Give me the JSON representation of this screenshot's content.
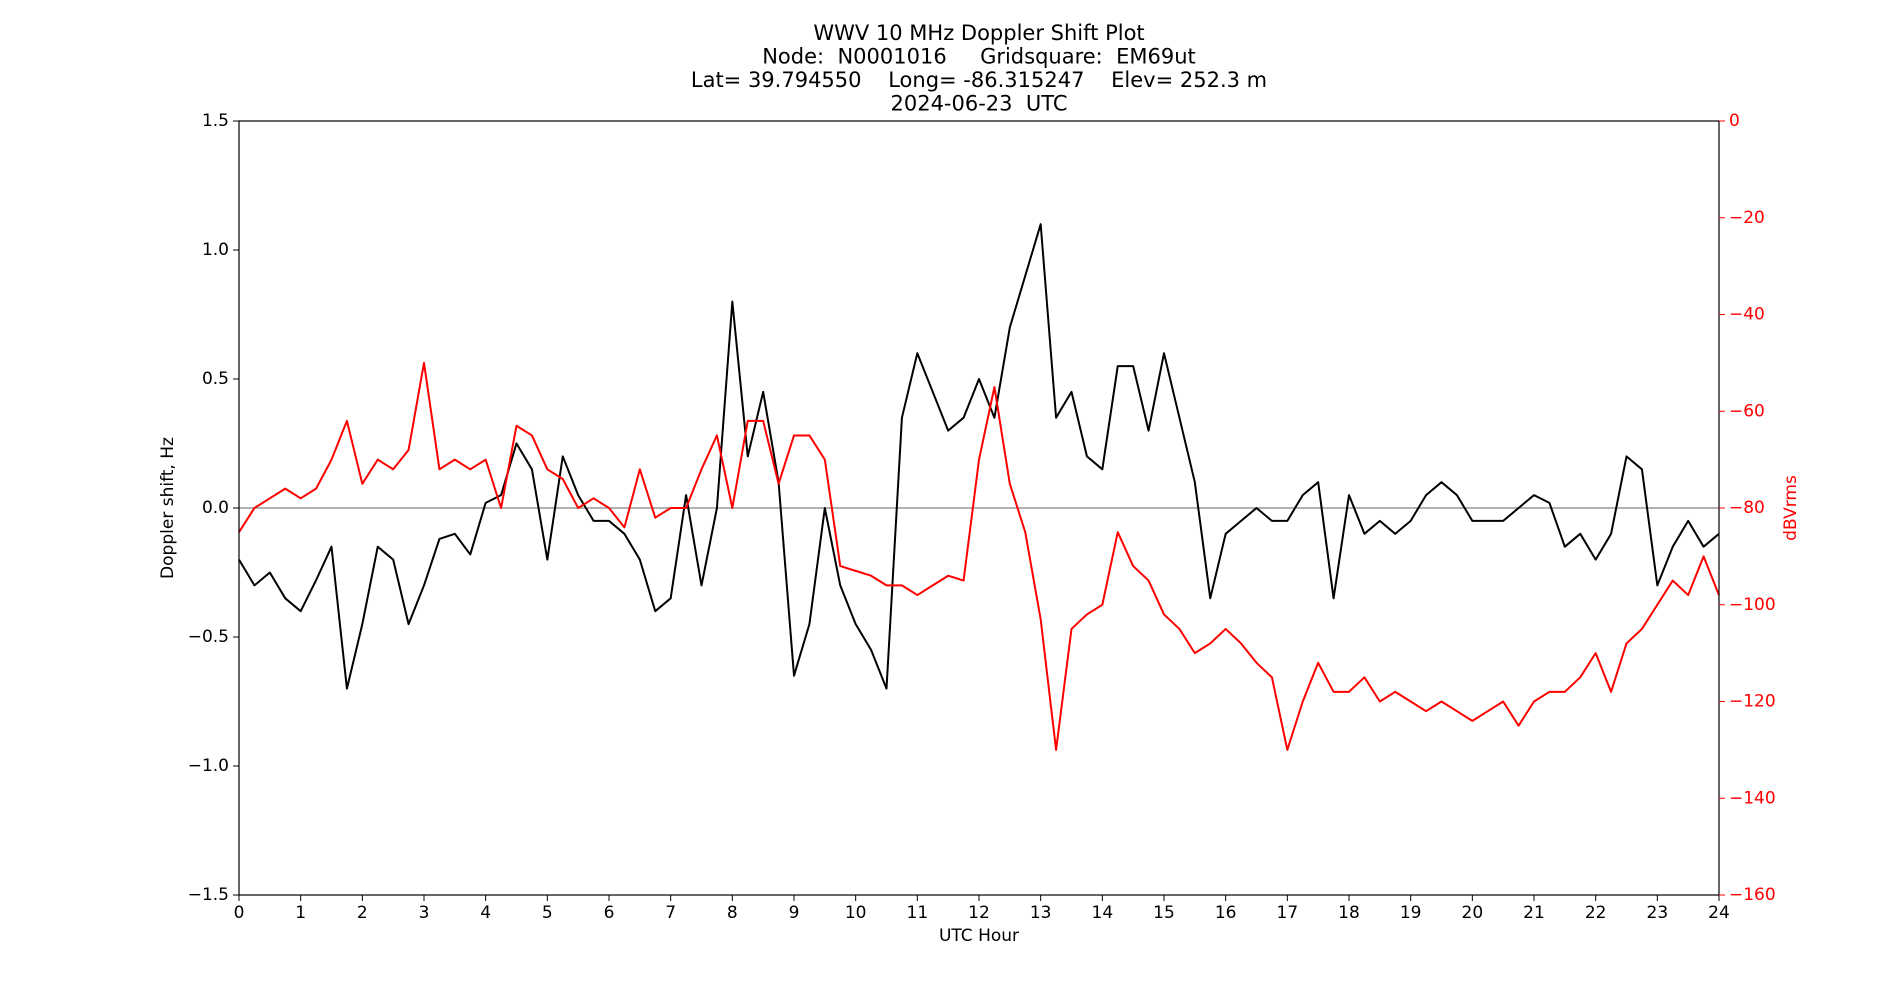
{
  "chart_data": {
    "type": "line",
    "title": [
      "WWV 10 MHz Doppler Shift Plot",
      "Node:  N0001016     Gridsquare:  EM69ut",
      "Lat= 39.794550    Long= -86.315247    Elev= 252.3 m",
      "2024-06-23  UTC"
    ],
    "xlabel": "UTC Hour",
    "ylabel": "Doppler shift, Hz",
    "y2label": "dBVrms",
    "x": [
      0,
      0.25,
      0.5,
      0.75,
      1,
      1.25,
      1.5,
      1.75,
      2,
      2.25,
      2.5,
      2.75,
      3,
      3.25,
      3.5,
      3.75,
      4,
      4.25,
      4.5,
      4.75,
      5,
      5.25,
      5.5,
      5.75,
      6,
      6.25,
      6.5,
      6.75,
      7,
      7.25,
      7.5,
      7.75,
      8,
      8.25,
      8.5,
      8.75,
      9,
      9.25,
      9.5,
      9.75,
      10,
      10.25,
      10.5,
      10.75,
      11,
      11.25,
      11.5,
      11.75,
      12,
      12.25,
      12.5,
      12.75,
      13,
      13.25,
      13.5,
      13.75,
      14,
      14.25,
      14.5,
      14.75,
      15,
      15.25,
      15.5,
      15.75,
      16,
      16.25,
      16.5,
      16.75,
      17,
      17.25,
      17.5,
      17.75,
      18,
      18.25,
      18.5,
      18.75,
      19,
      19.25,
      19.5,
      19.75,
      20,
      20.25,
      20.5,
      20.75,
      21,
      21.25,
      21.5,
      21.75,
      22,
      22.25,
      22.5,
      22.75,
      23,
      23.25,
      23.5,
      23.75,
      24
    ],
    "series": [
      {
        "color": "#000000",
        "values": [
          -0.2,
          -0.3,
          -0.25,
          -0.35,
          -0.4,
          -0.28,
          -0.15,
          -0.7,
          -0.45,
          -0.15,
          -0.2,
          -0.45,
          -0.3,
          -0.12,
          -0.1,
          -0.18,
          0.02,
          0.05,
          0.25,
          0.15,
          -0.2,
          0.2,
          0.05,
          -0.05,
          -0.05,
          -0.1,
          -0.2,
          -0.4,
          -0.35,
          0.05,
          -0.3,
          0,
          0.8,
          0.2,
          0.45,
          0.1,
          -0.65,
          -0.45,
          0,
          -0.3,
          -0.45,
          -0.55,
          -0.7,
          0.35,
          0.6,
          0.45,
          0.3,
          0.35,
          0.5,
          0.35,
          0.7,
          0.9,
          1.1,
          0.35,
          0.45,
          0.2,
          0.15,
          0.55,
          0.55,
          0.3,
          0.6,
          0.35,
          0.1,
          -0.35,
          -0.1,
          -0.05,
          0,
          -0.05,
          -0.05,
          0.05,
          0.1,
          -0.35,
          0.05,
          -0.1,
          -0.05,
          -0.1,
          -0.05,
          0.05,
          0.1,
          0.05,
          -0.05,
          -0.05,
          -0.05,
          0,
          0.05,
          0.02,
          -0.15,
          -0.1,
          -0.2,
          -0.1,
          0.2,
          0.15,
          -0.3,
          -0.15,
          -0.05,
          -0.15,
          -0.1
        ]
      },
      {
        "color": "#ff0000",
        "axis": "y2",
        "values": [
          -85,
          -80,
          -78,
          -76,
          -78,
          -76,
          -70,
          -62,
          -75,
          -70,
          -72,
          -68,
          -50,
          -72,
          -70,
          -72,
          -70,
          -80,
          -63,
          -65,
          -72,
          -74,
          -80,
          -78,
          -80,
          -84,
          -72,
          -82,
          -80,
          -80,
          -72,
          -65,
          -80,
          -62,
          -62,
          -75,
          -65,
          -65,
          -70,
          -92,
          -93,
          -94,
          -96,
          -96,
          -98,
          -96,
          -94,
          -95,
          -70,
          -55,
          -75,
          -85,
          -103,
          -130,
          -105,
          -102,
          -100,
          -85,
          -92,
          -95,
          -102,
          -105,
          -110,
          -108,
          -105,
          -108,
          -112,
          -115,
          -130,
          -120,
          -112,
          -118,
          -118,
          -115,
          -120,
          -118,
          -120,
          -122,
          -120,
          -122,
          -124,
          -122,
          -120,
          -125,
          -120,
          -118,
          -118,
          -115,
          -110,
          -118,
          -108,
          -105,
          -100,
          -95,
          -98,
          -90,
          -98
        ]
      }
    ],
    "xlim": [
      0,
      24
    ],
    "xticks": [
      0,
      1,
      2,
      3,
      4,
      5,
      6,
      7,
      8,
      9,
      10,
      11,
      12,
      13,
      14,
      15,
      16,
      17,
      18,
      19,
      20,
      21,
      22,
      23,
      24
    ],
    "ylim": [
      -1.5,
      1.5
    ],
    "yticks": [
      {
        "value": -1.5,
        "label": "−1.5"
      },
      {
        "value": -1,
        "label": "−1.0"
      },
      {
        "value": -0.5,
        "label": "−0.5"
      },
      {
        "value": 0,
        "label": "0.0"
      },
      {
        "value": 0.5,
        "label": "0.5"
      },
      {
        "value": 1,
        "label": "1.0"
      },
      {
        "value": 1.5,
        "label": "1.5"
      }
    ],
    "y2lim": [
      -160,
      0
    ],
    "y2ticks": [
      {
        "value": -160,
        "label": "−160"
      },
      {
        "value": -140,
        "label": "−140"
      },
      {
        "value": -120,
        "label": "−120"
      },
      {
        "value": -100,
        "label": "−100"
      },
      {
        "value": -80,
        "label": "−80"
      },
      {
        "value": -60,
        "label": "−60"
      },
      {
        "value": -40,
        "label": "−40"
      },
      {
        "value": -20,
        "label": "−20"
      },
      {
        "value": 0,
        "label": "0"
      }
    ],
    "hline": 0,
    "hline_color": "#999999",
    "y2color": "#ff0000"
  }
}
